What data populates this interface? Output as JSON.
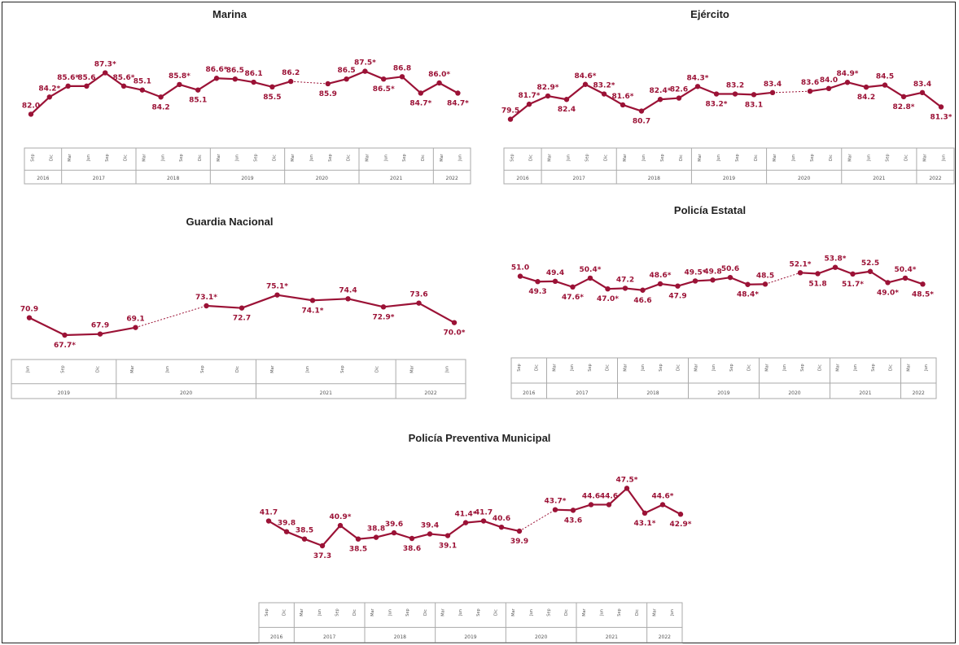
{
  "colors": {
    "line": "#9b1236",
    "axis_box": "#aaaaaa",
    "title": "#222222"
  },
  "chart_data": [
    {
      "type": "line",
      "title": "Marina",
      "x": [
        "Sep 2016",
        "Dic 2016",
        "Mar 2017",
        "Jun 2017",
        "Sep 2017",
        "Dic 2017",
        "Mar 2018",
        "Jun 2018",
        "Sep 2018",
        "Dic 2018",
        "Mar 2019",
        "Jun 2019",
        "Sep 2019",
        "Dic 2019",
        "Mar 2020",
        "Sep 2020",
        "Dic 2020",
        "Mar 2021",
        "Jun 2021",
        "Sep 2021",
        "Dic 2021",
        "Mar 2022",
        "Jun 2022"
      ],
      "values": [
        82.0,
        84.2,
        85.6,
        85.6,
        87.3,
        85.6,
        85.1,
        84.2,
        85.8,
        85.1,
        86.6,
        86.5,
        86.1,
        85.5,
        86.2,
        85.9,
        86.5,
        87.5,
        86.5,
        86.8,
        84.7,
        86.0,
        84.7
      ],
      "labels": [
        "82.0",
        "84.2*",
        "85.6*",
        "85.6",
        "87.3*",
        "85.6*",
        "85.1",
        "84.2",
        "85.8*",
        "85.1",
        "86.6*",
        "86.5",
        "86.1",
        "85.5",
        "86.2",
        "85.9",
        "86.5",
        "87.5*",
        "86.5*",
        "86.8",
        "84.7*",
        "86.0*",
        "84.7*"
      ],
      "dashed_segments": [
        14
      ],
      "ylim": [
        81,
        88.5
      ],
      "axis": {
        "ticks": [
          "Sep",
          "Dic",
          "Mar",
          "Jun",
          "Sep",
          "Dic",
          "Mar",
          "Jun",
          "Sep",
          "Dic",
          "Mar",
          "Jun",
          "Sep",
          "Dic",
          "Mar",
          "Jun",
          "Sep",
          "Dic",
          "Mar",
          "Jun",
          "Sep",
          "Dic",
          "Mar",
          "Jun"
        ],
        "years": [
          {
            "label": "2016",
            "n": 2
          },
          {
            "label": "2017",
            "n": 4
          },
          {
            "label": "2018",
            "n": 4
          },
          {
            "label": "2019",
            "n": 4
          },
          {
            "label": "2020",
            "n": 4
          },
          {
            "label": "2021",
            "n": 4
          },
          {
            "label": "2022",
            "n": 2
          }
        ]
      }
    },
    {
      "type": "line",
      "title": "Ejército",
      "x": [
        "Sep 2016",
        "Dic 2016",
        "Mar 2017",
        "Jun 2017",
        "Sep 2017",
        "Dic 2017",
        "Mar 2018",
        "Jun 2018",
        "Sep 2018",
        "Dic 2018",
        "Mar 2019",
        "Jun 2019",
        "Sep 2019",
        "Dic 2019",
        "Mar 2020",
        "Sep 2020",
        "Dic 2020",
        "Mar 2021",
        "Jun 2021",
        "Sep 2021",
        "Dic 2021",
        "Mar 2022",
        "Jun 2022"
      ],
      "values": [
        79.5,
        81.7,
        82.9,
        82.4,
        84.6,
        83.2,
        81.6,
        80.7,
        82.4,
        82.6,
        84.3,
        83.2,
        83.2,
        83.1,
        83.4,
        83.6,
        84.0,
        84.9,
        84.2,
        84.5,
        82.8,
        83.4,
        81.3
      ],
      "labels": [
        "79.5",
        "81.7*",
        "82.9*",
        "82.4",
        "84.6*",
        "83.2*",
        "81.6*",
        "80.7",
        "82.4*",
        "82.6",
        "84.3*",
        "83.2*",
        "83.2",
        "83.1",
        "83.4",
        "83.6",
        "84.0",
        "84.9*",
        "84.2",
        "84.5",
        "82.8*",
        "83.4",
        "81.3*"
      ],
      "dashed_segments": [
        14
      ],
      "ylim": [
        78.5,
        86
      ],
      "axis": {
        "ticks": [
          "Sep",
          "Dic",
          "Mar",
          "Jun",
          "Sep",
          "Dic",
          "Mar",
          "Jun",
          "Sep",
          "Dic",
          "Mar",
          "Jun",
          "Sep",
          "Dic",
          "Mar",
          "Jun",
          "Sep",
          "Dic",
          "Mar",
          "Jun",
          "Sep",
          "Dic",
          "Mar",
          "Jun"
        ],
        "years": [
          {
            "label": "2016",
            "n": 2
          },
          {
            "label": "2017",
            "n": 4
          },
          {
            "label": "2018",
            "n": 4
          },
          {
            "label": "2019",
            "n": 4
          },
          {
            "label": "2020",
            "n": 4
          },
          {
            "label": "2021",
            "n": 4
          },
          {
            "label": "2022",
            "n": 2
          }
        ]
      }
    },
    {
      "type": "line",
      "title": "Guardia Nacional",
      "x": [
        "Jun 2019",
        "Sep 2019",
        "Dic 2019",
        "Mar 2020",
        "Sep 2020",
        "Dic 2020",
        "Mar 2021",
        "Jun 2021",
        "Sep 2021",
        "Dic 2021",
        "Mar 2022",
        "Jun 2022"
      ],
      "values": [
        70.9,
        67.7,
        67.9,
        69.1,
        73.1,
        72.7,
        75.1,
        74.1,
        74.4,
        72.9,
        73.6,
        70.0
      ],
      "labels": [
        "70.9",
        "67.7*",
        "67.9",
        "69.1",
        "73.1*",
        "72.7",
        "75.1*",
        "74.1*",
        "74.4",
        "72.9*",
        "73.6",
        "70.0*"
      ],
      "dashed_segments": [
        3
      ],
      "ylim": [
        66.5,
        77
      ],
      "axis": {
        "ticks": [
          "Jun",
          "Sep",
          "Dic",
          "Mar",
          "Jun",
          "Sep",
          "Dic",
          "Mar",
          "Jun",
          "Sep",
          "Dic",
          "Mar",
          "Jun"
        ],
        "years": [
          {
            "label": "2019",
            "n": 3
          },
          {
            "label": "2020",
            "n": 4
          },
          {
            "label": "2021",
            "n": 4
          },
          {
            "label": "2022",
            "n": 2
          }
        ]
      }
    },
    {
      "type": "line",
      "title": "Policía Estatal",
      "x": [
        "Sep 2016",
        "Dic 2016",
        "Mar 2017",
        "Jun 2017",
        "Sep 2017",
        "Dic 2017",
        "Mar 2018",
        "Jun 2018",
        "Sep 2018",
        "Dic 2018",
        "Mar 2019",
        "Jun 2019",
        "Sep 2019",
        "Dic 2019",
        "Mar 2020",
        "Sep 2020",
        "Dic 2020",
        "Mar 2021",
        "Jun 2021",
        "Sep 2021",
        "Dic 2021",
        "Mar 2022",
        "Jun 2022"
      ],
      "values": [
        51.0,
        49.3,
        49.4,
        47.6,
        50.4,
        47.0,
        47.2,
        46.6,
        48.6,
        47.9,
        49.5,
        49.8,
        50.6,
        48.4,
        48.5,
        52.1,
        51.8,
        53.8,
        51.7,
        52.5,
        49.0,
        50.4,
        48.5
      ],
      "labels": [
        "51.0",
        "49.3",
        "49.4",
        "47.6*",
        "50.4*",
        "47.0*",
        "47.2",
        "46.6",
        "48.6*",
        "47.9",
        "49.5*",
        "49.8",
        "50.6",
        "48.4*",
        "48.5",
        "52.1*",
        "51.8",
        "53.8*",
        "51.7*",
        "52.5",
        "49.0*",
        "50.4*",
        "48.5*"
      ],
      "dashed_segments": [
        14
      ],
      "ylim": [
        45,
        55
      ],
      "axis": {
        "ticks": [
          "Sep",
          "Dic",
          "Mar",
          "Jun",
          "Sep",
          "Dic",
          "Mar",
          "Jun",
          "Sep",
          "Dic",
          "Mar",
          "Jun",
          "Sep",
          "Dic",
          "Mar",
          "Jun",
          "Sep",
          "Dic",
          "Mar",
          "Jun",
          "Sep",
          "Dic",
          "Mar",
          "Jun"
        ],
        "years": [
          {
            "label": "2016",
            "n": 2
          },
          {
            "label": "2017",
            "n": 4
          },
          {
            "label": "2018",
            "n": 4
          },
          {
            "label": "2019",
            "n": 4
          },
          {
            "label": "2020",
            "n": 4
          },
          {
            "label": "2021",
            "n": 4
          },
          {
            "label": "2022",
            "n": 2
          }
        ]
      }
    },
    {
      "type": "line",
      "title": "Policía Preventiva Municipal",
      "x": [
        "Sep 2016",
        "Dic 2016",
        "Mar 2017",
        "Jun 2017",
        "Sep 2017",
        "Dic 2017",
        "Mar 2018",
        "Jun 2018",
        "Sep 2018",
        "Dic 2018",
        "Mar 2019",
        "Jun 2019",
        "Sep 2019",
        "Dic 2019",
        "Mar 2020",
        "Sep 2020",
        "Dic 2020",
        "Mar 2021",
        "Jun 2021",
        "Sep 2021",
        "Dic 2021",
        "Mar 2022",
        "Jun 2022"
      ],
      "values": [
        41.7,
        39.8,
        38.5,
        37.3,
        40.9,
        38.5,
        38.8,
        39.6,
        38.6,
        39.4,
        39.1,
        41.4,
        41.7,
        40.6,
        39.9,
        43.7,
        43.6,
        44.6,
        44.6,
        47.5,
        43.1,
        44.6,
        42.9
      ],
      "labels": [
        "41.7",
        "39.8",
        "38.5",
        "37.3",
        "40.9*",
        "38.5",
        "38.8",
        "39.6",
        "38.6",
        "39.4",
        "39.1",
        "41.4*",
        "41.7",
        "40.6",
        "39.9",
        "43.7*",
        "43.6",
        "44.6",
        "44.6",
        "47.5*",
        "43.1*",
        "44.6*",
        "42.9*"
      ],
      "dashed_segments": [
        14
      ],
      "ylim": [
        36,
        49
      ],
      "axis": {
        "ticks": [
          "Sep",
          "Dic",
          "Mar",
          "Jun",
          "Sep",
          "Dic",
          "Mar",
          "Jun",
          "Sep",
          "Dic",
          "Mar",
          "Jun",
          "Sep",
          "Dic",
          "Mar",
          "Jun",
          "Sep",
          "Dic",
          "Mar",
          "Jun",
          "Sep",
          "Dic",
          "Mar",
          "Jun"
        ],
        "years": [
          {
            "label": "2016",
            "n": 2
          },
          {
            "label": "2017",
            "n": 4
          },
          {
            "label": "2018",
            "n": 4
          },
          {
            "label": "2019",
            "n": 4
          },
          {
            "label": "2020",
            "n": 4
          },
          {
            "label": "2021",
            "n": 4
          },
          {
            "label": "2022",
            "n": 2
          }
        ]
      }
    }
  ]
}
